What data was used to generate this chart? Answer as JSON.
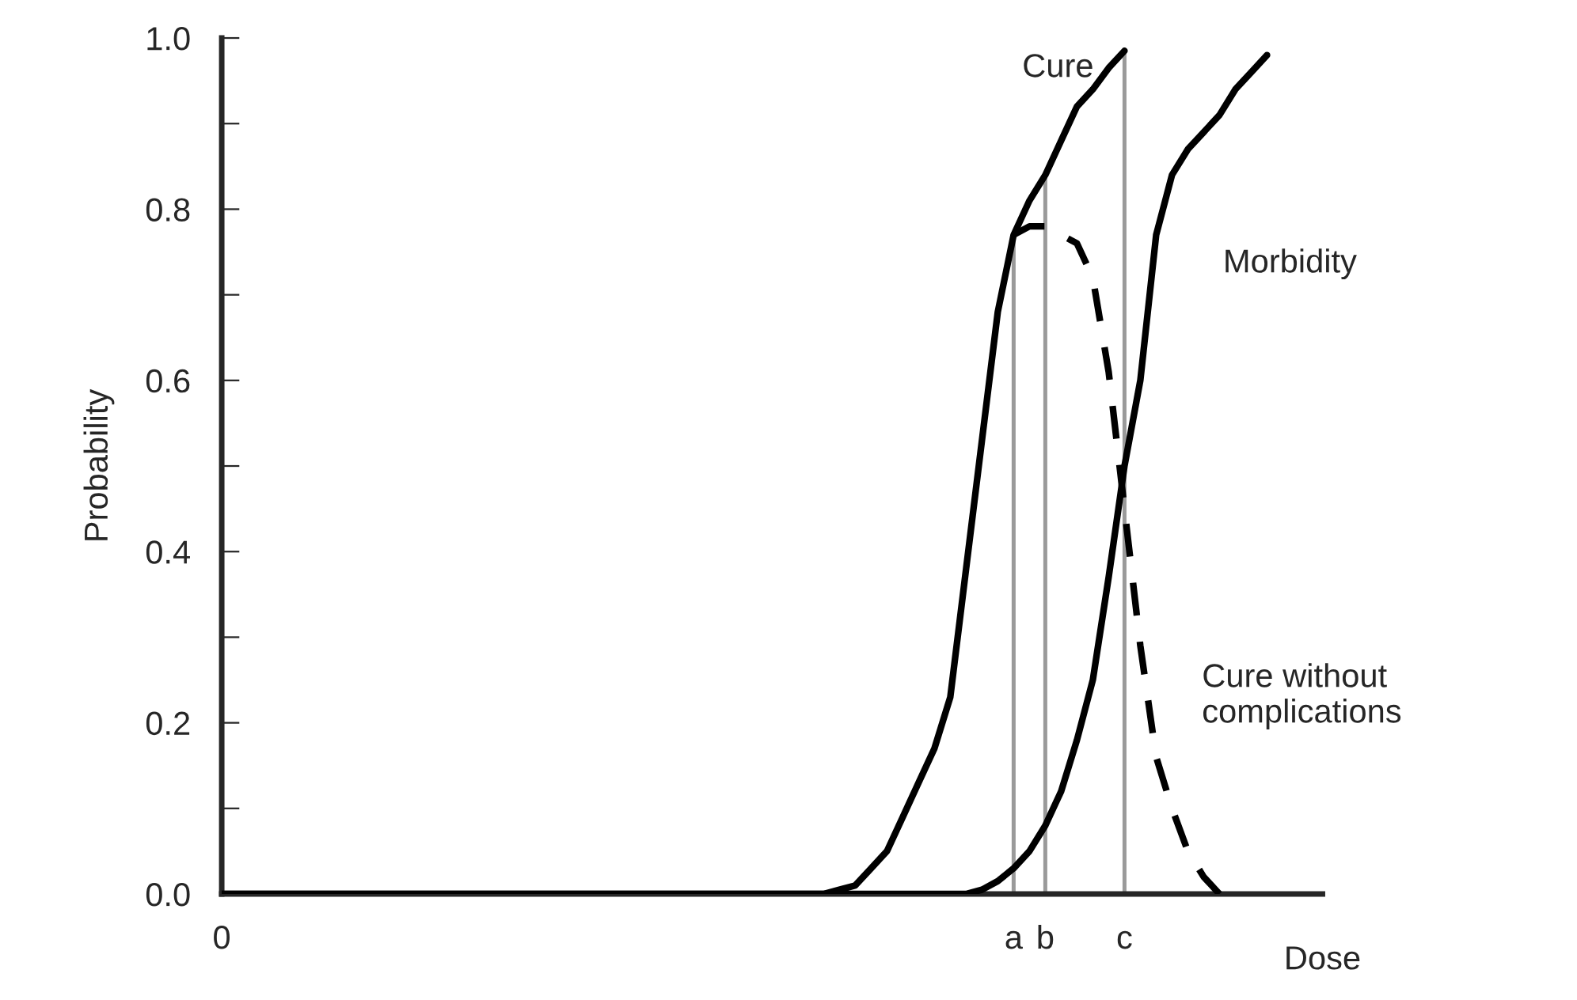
{
  "chart_data": {
    "type": "line",
    "xlabel": "Dose",
    "ylabel": "Probability",
    "categories": [
      "0",
      null,
      null,
      null,
      null,
      null,
      null,
      null,
      null,
      null,
      null,
      null,
      null,
      null,
      null,
      null,
      null,
      null,
      null,
      null,
      null,
      null,
      null,
      null,
      null,
      null,
      null,
      null,
      null,
      null,
      null,
      null,
      null,
      null,
      null,
      null,
      null,
      null,
      null,
      null,
      null,
      null,
      null,
      null,
      null,
      null,
      null,
      null,
      null,
      null,
      "a",
      null,
      "b",
      null,
      null,
      null,
      null,
      "c",
      null,
      null,
      null,
      null,
      null,
      null,
      null,
      null,
      null,
      null,
      null,
      null
    ],
    "ylim": [
      0,
      1
    ],
    "yticks": [
      {
        "value": 0,
        "label": "0.0"
      },
      {
        "value": 0.1,
        "label": null
      },
      0.2,
      {
        "value": 0.3,
        "label": null
      },
      0.4,
      {
        "value": 0.5,
        "label": null
      },
      0.6,
      {
        "value": 0.7,
        "label": null
      },
      0.8,
      {
        "value": 0.9,
        "label": null
      },
      {
        "value": 1,
        "label": "1.0"
      }
    ],
    "grid": false,
    "legend": false,
    "series": [
      {
        "type": "bar",
        "color": "#9a9a9a",
        "values": [
          null,
          null,
          null,
          null,
          null,
          null,
          null,
          null,
          null,
          null,
          null,
          null,
          null,
          null,
          null,
          null,
          null,
          null,
          null,
          null,
          null,
          null,
          null,
          null,
          null,
          null,
          null,
          null,
          null,
          null,
          null,
          null,
          null,
          null,
          null,
          null,
          null,
          null,
          null,
          null,
          null,
          null,
          null,
          null,
          null,
          null,
          null,
          null,
          null,
          null,
          0.77,
          null,
          0.84,
          null,
          null,
          null,
          null,
          0.985,
          null,
          null,
          null,
          null,
          null,
          null,
          null,
          null,
          null,
          null,
          null,
          null
        ]
      },
      {
        "name": "Cure",
        "color": "#000000",
        "line_style": "solid",
        "values": [
          0,
          0,
          0,
          0,
          0,
          0,
          0,
          0,
          0,
          0,
          0,
          0,
          0,
          0,
          0,
          0,
          0,
          0,
          0,
          0,
          0,
          0,
          0,
          0,
          0,
          0,
          0,
          0,
          0,
          0,
          0,
          0,
          0,
          0,
          0,
          0,
          0,
          0,
          0,
          0.005,
          0.01,
          0.03,
          0.05,
          0.09,
          0.13,
          0.17,
          0.23,
          0.38,
          0.53,
          0.68,
          0.77,
          0.81,
          0.84,
          0.88,
          0.92,
          0.94,
          0.965,
          0.985,
          null,
          null,
          null,
          null,
          null,
          null,
          null,
          null,
          null,
          null,
          null,
          null
        ]
      },
      {
        "name": "Morbidity",
        "color": "#000000",
        "line_style": "solid",
        "values": [
          0,
          0,
          0,
          0,
          0,
          0,
          0,
          0,
          0,
          0,
          0,
          0,
          0,
          0,
          0,
          0,
          0,
          0,
          0,
          0,
          0,
          0,
          0,
          0,
          0,
          0,
          0,
          0,
          0,
          0,
          0,
          0,
          0,
          0,
          0,
          0,
          0,
          0,
          0,
          0,
          0,
          0,
          0,
          0,
          0,
          0,
          0,
          0,
          0.005,
          0.015,
          0.03,
          0.05,
          0.08,
          0.12,
          0.18,
          0.25,
          0.37,
          0.5,
          0.6,
          0.77,
          0.84,
          0.87,
          0.89,
          0.91,
          0.94,
          0.96,
          0.98,
          null,
          null,
          null
        ]
      },
      {
        "name": "Cure without\ncomplications",
        "color": "#000000",
        "line_style": "dashed",
        "values": [
          null,
          null,
          null,
          null,
          null,
          null,
          null,
          null,
          null,
          null,
          null,
          null,
          null,
          null,
          null,
          null,
          null,
          null,
          null,
          null,
          null,
          null,
          null,
          null,
          null,
          null,
          null,
          null,
          null,
          null,
          null,
          null,
          null,
          null,
          null,
          null,
          null,
          null,
          null,
          null,
          null,
          null,
          null,
          null,
          null,
          null,
          null,
          null,
          null,
          null,
          0.77,
          0.78,
          0.78,
          0.77,
          0.76,
          0.72,
          0.61,
          0.45,
          0.29,
          0.16,
          0.1,
          0.05,
          0.02,
          0,
          null,
          null,
          null,
          null,
          null,
          null
        ]
      }
    ]
  }
}
